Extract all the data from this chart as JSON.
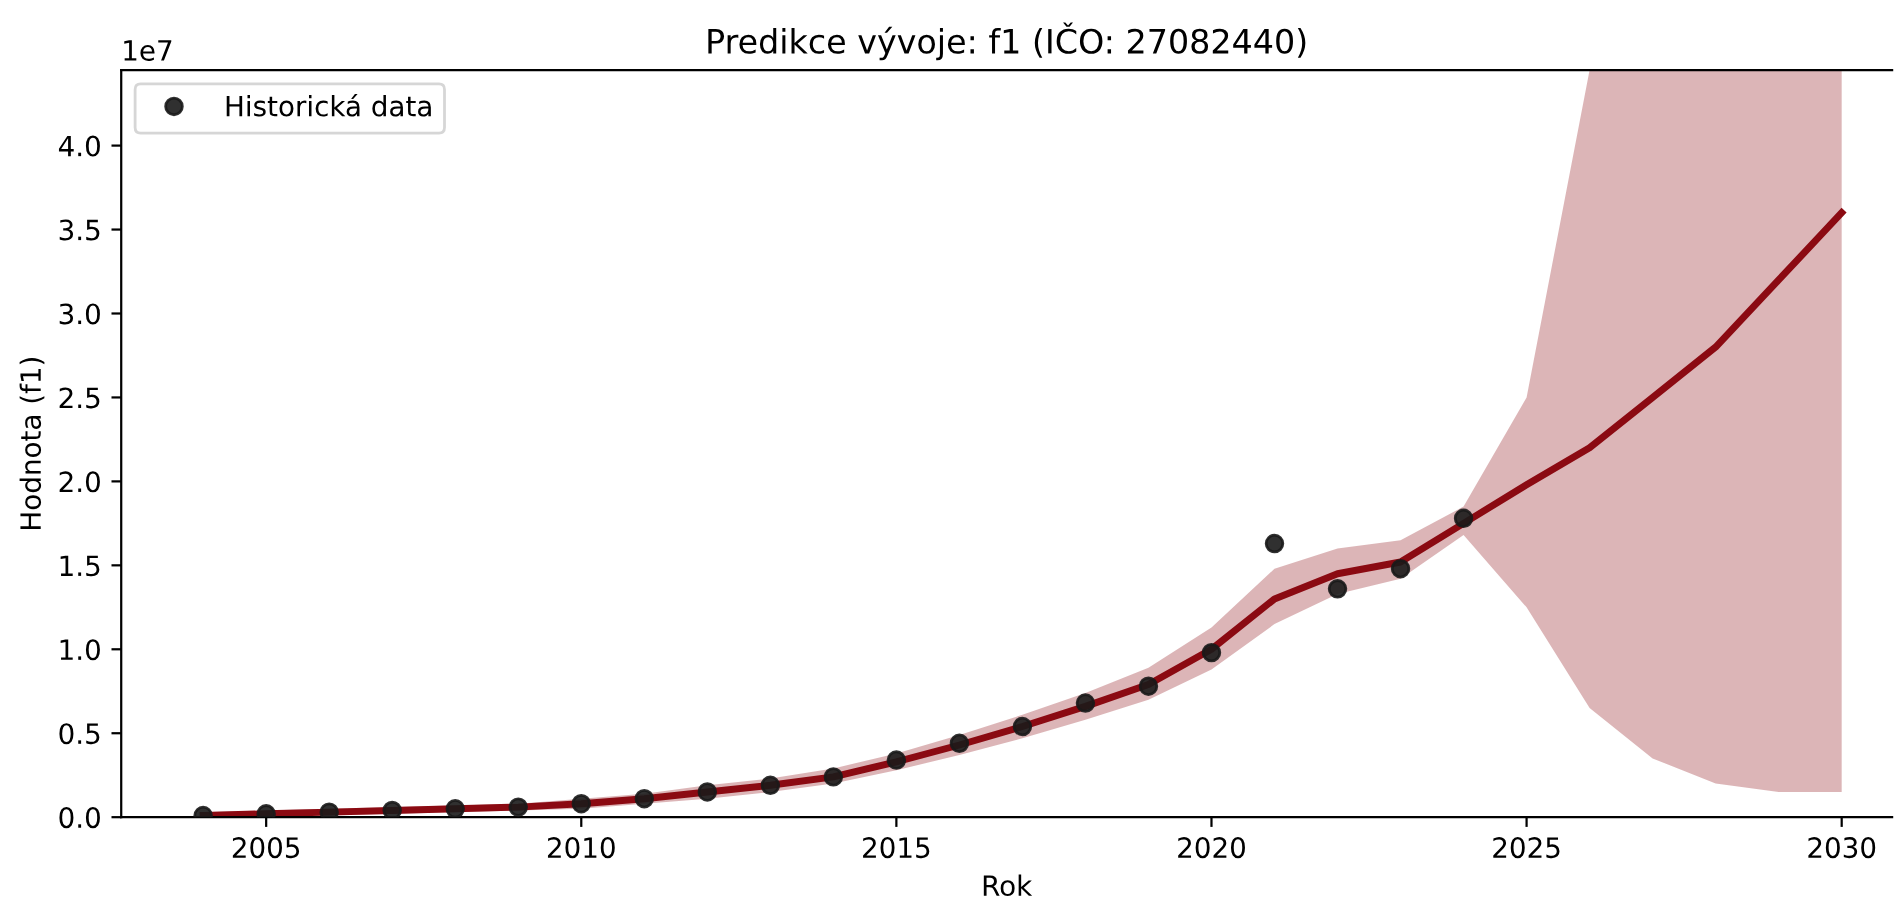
{
  "chart_data": {
    "type": "line",
    "title": "Predikce vývoje: f1 (IČO: 27082440)",
    "xlabel": "Rok",
    "ylabel": "Hodnota (f1)",
    "annotations": [
      "1e7"
    ],
    "xlim": [
      2002.7,
      2030.8
    ],
    "xticks": [
      2005,
      2010,
      2015,
      2020,
      2025,
      2030
    ],
    "ylim": [
      0,
      4.45
    ],
    "yticks": [
      {
        "value": 0,
        "label": "0.0"
      },
      0.5,
      {
        "value": 1,
        "label": "1.0"
      },
      1.5,
      {
        "value": 2,
        "label": "2.0"
      },
      2.5,
      {
        "value": 3,
        "label": "3.0"
      },
      3.5,
      {
        "value": 4,
        "label": "4.0"
      }
    ],
    "grid": false,
    "legend": "top left",
    "series": [
      {
        "color": "#8b0a12",
        "x": [
          2004,
          2005,
          2006,
          2007,
          2008,
          2009,
          2010,
          2011,
          2012,
          2013,
          2014,
          2015,
          2016,
          2017,
          2018,
          2019,
          2020,
          2021,
          2022,
          2023,
          2024,
          2025,
          2026,
          2027,
          2028,
          2029,
          2030
        ],
        "values": [
          0.01,
          0.02,
          0.03,
          0.04,
          0.05,
          0.06,
          0.08,
          0.11,
          0.15,
          0.19,
          0.24,
          0.33,
          0.43,
          0.54,
          0.66,
          0.79,
          1.0,
          1.3,
          1.45,
          1.52,
          1.75,
          1.98,
          2.2,
          2.5,
          2.8,
          3.2,
          3.6
        ],
        "lower": [
          0,
          0,
          0.01,
          0.02,
          0.03,
          0.04,
          0.05,
          0.08,
          0.11,
          0.15,
          0.2,
          0.28,
          0.37,
          0.47,
          0.58,
          0.7,
          0.88,
          1.15,
          1.33,
          1.42,
          1.68,
          1.25,
          0.65,
          0.35,
          0.2,
          0.15,
          0.15
        ],
        "upper": [
          0.03,
          0.04,
          0.05,
          0.06,
          0.07,
          0.08,
          0.11,
          0.14,
          0.19,
          0.23,
          0.29,
          0.38,
          0.49,
          0.61,
          0.74,
          0.89,
          1.13,
          1.48,
          1.6,
          1.65,
          1.85,
          2.5,
          4.45,
          4.45,
          4.45,
          4.45,
          4.45
        ]
      },
      {
        "type": "scatter",
        "name": "Historická data",
        "color": "#1a1a1a",
        "marker": "circle",
        "x": [
          2004,
          2005,
          2006,
          2007,
          2008,
          2009,
          2010,
          2011,
          2012,
          2013,
          2014,
          2015,
          2016,
          2017,
          2018,
          2019,
          2020,
          2021,
          2022,
          2023,
          2024
        ],
        "values": [
          0.01,
          0.02,
          0.03,
          0.04,
          0.05,
          0.06,
          0.08,
          0.11,
          0.15,
          0.19,
          0.24,
          0.34,
          0.44,
          0.54,
          0.68,
          0.78,
          0.98,
          1.63,
          1.36,
          1.48,
          1.78
        ]
      }
    ]
  }
}
